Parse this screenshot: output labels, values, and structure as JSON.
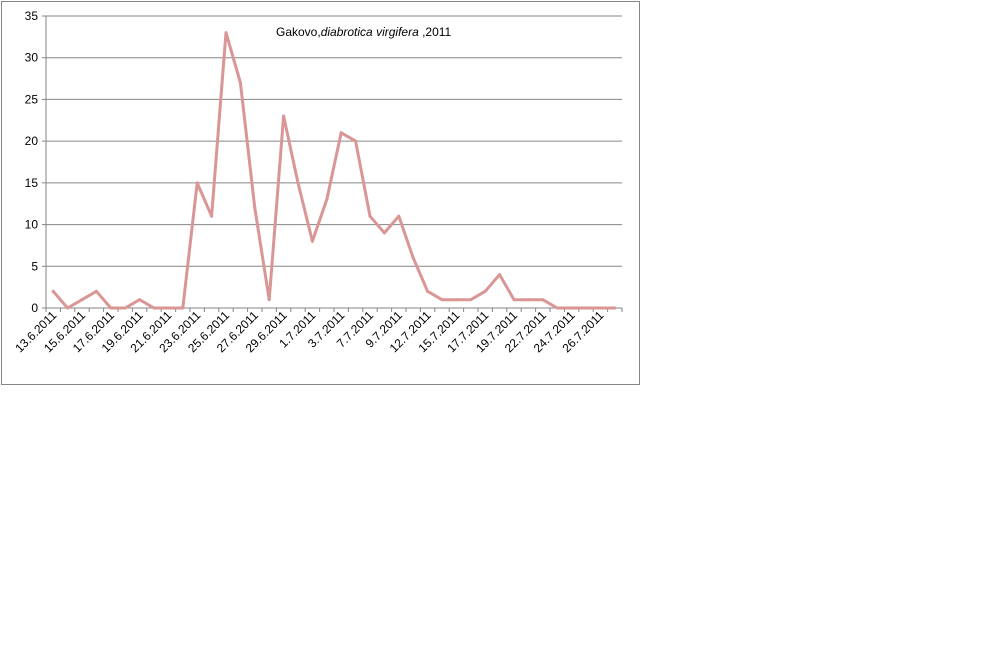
{
  "chart_data": {
    "type": "line",
    "title_prefix": "Gakovo,",
    "title_species": "diabrotica virgifera",
    "title_suffix": " ,2011",
    "xlabel": "",
    "ylabel": "",
    "ylim": [
      0,
      35
    ],
    "y_ticks": [
      0,
      5,
      10,
      15,
      20,
      25,
      30,
      35
    ],
    "grid": true,
    "legend": "none",
    "line_color": "#d99694",
    "x_tick_labels": [
      "13.6.2011",
      "15.6.2011",
      "17.6.2011",
      "19.6.2011",
      "21.6.2011",
      "23.6.2011",
      "25.6.2011",
      "27.6.2011",
      "29.6.2011",
      "1.7.2011",
      "3.7.2011",
      "7.7.2011",
      "9.7.2011",
      "12.7.2011",
      "15.7.2011",
      "17.7.2011",
      "19.7.2011",
      "22.7.2011",
      "24.7.2011",
      "26.7.2011"
    ],
    "x": [
      "13.6.2011",
      "14.6.2011",
      "15.6.2011",
      "16.6.2011",
      "17.6.2011",
      "18.6.2011",
      "19.6.2011",
      "20.6.2011",
      "21.6.2011",
      "22.6.2011",
      "23.6.2011",
      "24.6.2011",
      "25.6.2011",
      "26.6.2011",
      "27.6.2011",
      "28.6.2011",
      "29.6.2011",
      "30.6.2011",
      "1.7.2011",
      "2.7.2011",
      "3.7.2011",
      "5.7.2011",
      "7.7.2011",
      "8.7.2011",
      "9.7.2011",
      "11.7.2011",
      "12.7.2011",
      "14.7.2011",
      "15.7.2011",
      "16.7.2011",
      "17.7.2011",
      "18.7.2011",
      "19.7.2011",
      "21.7.2011",
      "22.7.2011",
      "23.7.2011",
      "24.7.2011",
      "25.7.2011",
      "26.7.2011",
      "27.7.2011"
    ],
    "values": [
      2,
      0,
      1,
      2,
      0,
      0,
      1,
      0,
      0,
      0,
      15,
      11,
      33,
      27,
      12,
      1,
      23,
      15,
      8,
      13,
      21,
      20,
      11,
      9,
      11,
      6,
      2,
      1,
      1,
      1,
      2,
      4,
      1,
      1,
      1,
      0,
      0,
      0,
      0,
      0
    ]
  }
}
